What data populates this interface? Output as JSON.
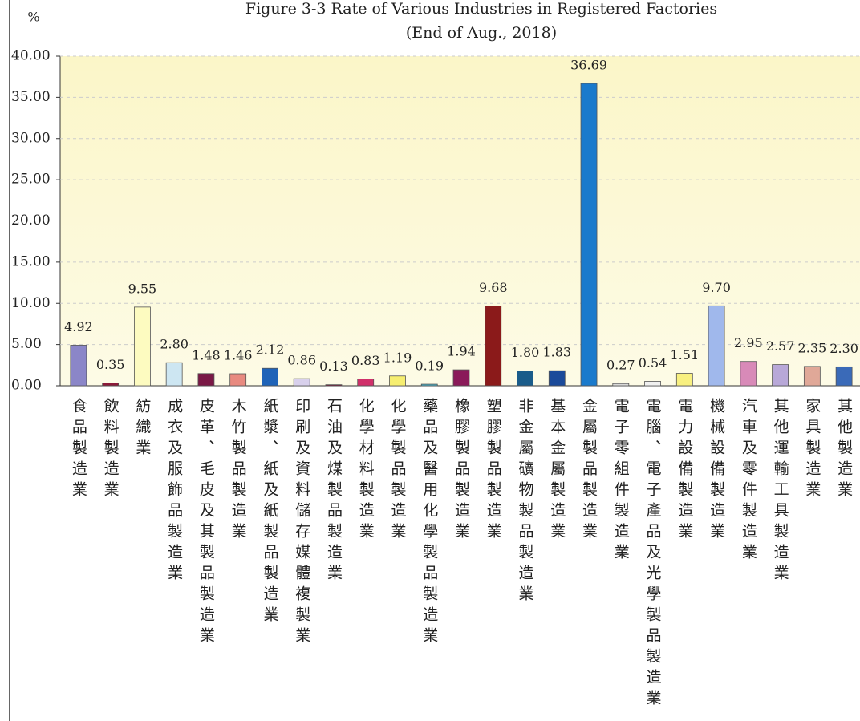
{
  "chart_data": {
    "type": "bar",
    "title": "Figure 3-3    Rate of Various Industries in Registered Factories",
    "subtitle": "(End of Aug., 2018)",
    "y_label": "%",
    "categories": [
      "食品製造業",
      "飲料製造業",
      "紡織業",
      "成衣及服飾品製造業",
      "皮革、毛皮及其製品製造業",
      "木竹製品製造業",
      "紙漿、紙及紙製品製造業",
      "印刷及資料儲存媒體複製業",
      "石油及煤製品製造業",
      "化學材料製造業",
      "化學製品製造業",
      "藥品及醫用化學製品製造業",
      "橡膠製品製造業",
      "塑膠製品製造業",
      "非金屬礦物製品製造業",
      "基本金屬製造業",
      "金屬製品製造業",
      "電子零組件製造業",
      "電腦、電子產品及光學製品製造業",
      "電力設備製造業",
      "機械設備製造業",
      "汽車及零件製造業",
      "其他運輸工具製造業",
      "家具製造業",
      "其他製造業"
    ],
    "values": [
      4.92,
      0.35,
      9.55,
      2.8,
      1.48,
      1.46,
      2.12,
      0.86,
      0.13,
      0.83,
      1.19,
      0.19,
      1.94,
      9.68,
      1.8,
      1.83,
      36.69,
      0.27,
      0.54,
      1.51,
      9.7,
      2.95,
      2.57,
      2.35,
      2.3
    ],
    "value_labels": [
      "4.92",
      "0.35",
      "9.55",
      "2.80",
      "1.48",
      "1.46",
      "2.12",
      "0.86",
      "0.13",
      "0.83",
      "1.19",
      "0.19",
      "1.94",
      "9.68",
      "1.80",
      "1.83",
      "36.69",
      "0.27",
      "0.54",
      "1.51",
      "9.70",
      "2.95",
      "2.57",
      "2.35",
      "2.30"
    ],
    "colors": [
      "#8b86c8",
      "#8b1a3a",
      "#fdfbc0",
      "#cde6f2",
      "#7a1846",
      "#e88a80",
      "#1f63b8",
      "#d8d0ec",
      "#7a1a3a",
      "#d0306a",
      "#f6ee70",
      "#4ab0c8",
      "#8a1a5a",
      "#8b1a1a",
      "#1a5c8a",
      "#1a4a9a",
      "#1a7acc",
      "#d8d8d8",
      "#f0f0f0",
      "#f8f080",
      "#a0b8ec",
      "#d88ab8",
      "#b8a8d8",
      "#e0a898",
      "#3a6ab8"
    ],
    "ylim": [
      0,
      40
    ],
    "yticks": [
      {
        "value": 0,
        "label": "0.00"
      },
      {
        "value": 5,
        "label": "5.00"
      },
      {
        "value": 10,
        "label": "10.00"
      },
      {
        "value": 15,
        "label": "15.00"
      },
      {
        "value": 20,
        "label": "20.00"
      },
      {
        "value": 25,
        "label": "25.00"
      },
      {
        "value": 30,
        "label": "30.00"
      },
      {
        "value": 35,
        "label": "35.00"
      },
      {
        "value": 40,
        "label": "40.00"
      }
    ],
    "grid": true
  }
}
